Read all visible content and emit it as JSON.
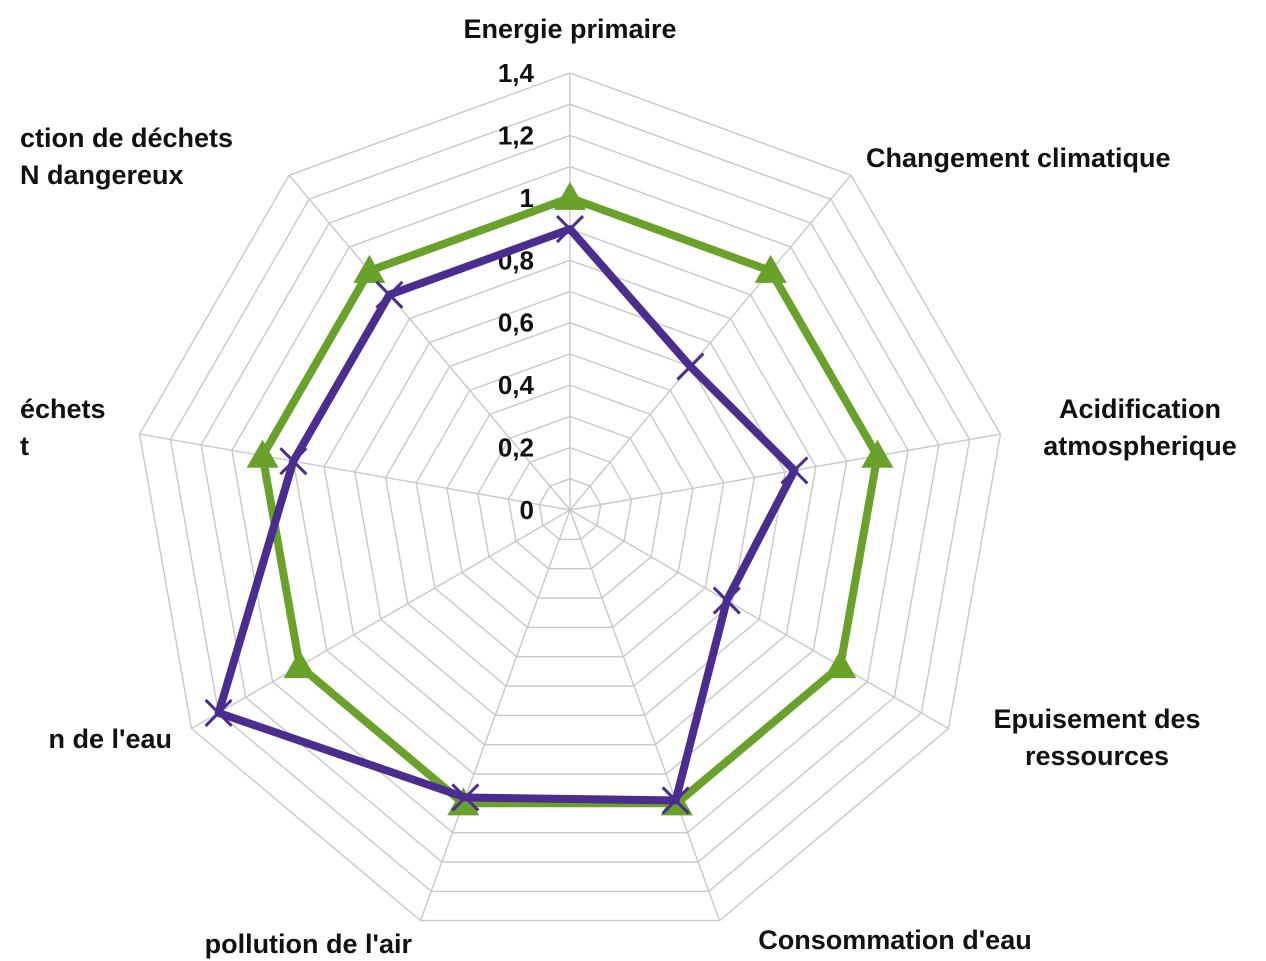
{
  "chart_data": {
    "type": "radar",
    "axes": [
      {
        "label": [
          "Energie primaire"
        ]
      },
      {
        "label": [
          "Changement climatique"
        ]
      },
      {
        "label": [
          "Acidification",
          "atmospherique"
        ]
      },
      {
        "label": [
          "Epuisement des",
          "ressources"
        ]
      },
      {
        "label": [
          "Consommation d'eau"
        ]
      },
      {
        "label": [
          "pollution de l'air"
        ]
      },
      {
        "label": [
          "n de l'eau"
        ]
      },
      {
        "label": [
          "échets",
          "t"
        ]
      },
      {
        "label": [
          "ction de déchets",
          "N dangereux"
        ]
      }
    ],
    "ticks": [
      "0",
      "0,2",
      "0,4",
      "0,6",
      "0,8",
      "1",
      "1,2",
      "1,4"
    ],
    "rmax": 1.4,
    "series": [
      {
        "color": "#6aa12a",
        "marker": "triangle",
        "values": [
          1.0,
          1.0,
          1.0,
          1.0,
          1.0,
          1.0,
          1.0,
          1.0,
          1.0
        ]
      },
      {
        "color": "#4b2d8f",
        "marker": "x",
        "values": [
          0.9,
          0.6,
          0.73,
          0.58,
          0.99,
          0.98,
          1.3,
          0.9,
          0.9
        ]
      }
    ]
  }
}
